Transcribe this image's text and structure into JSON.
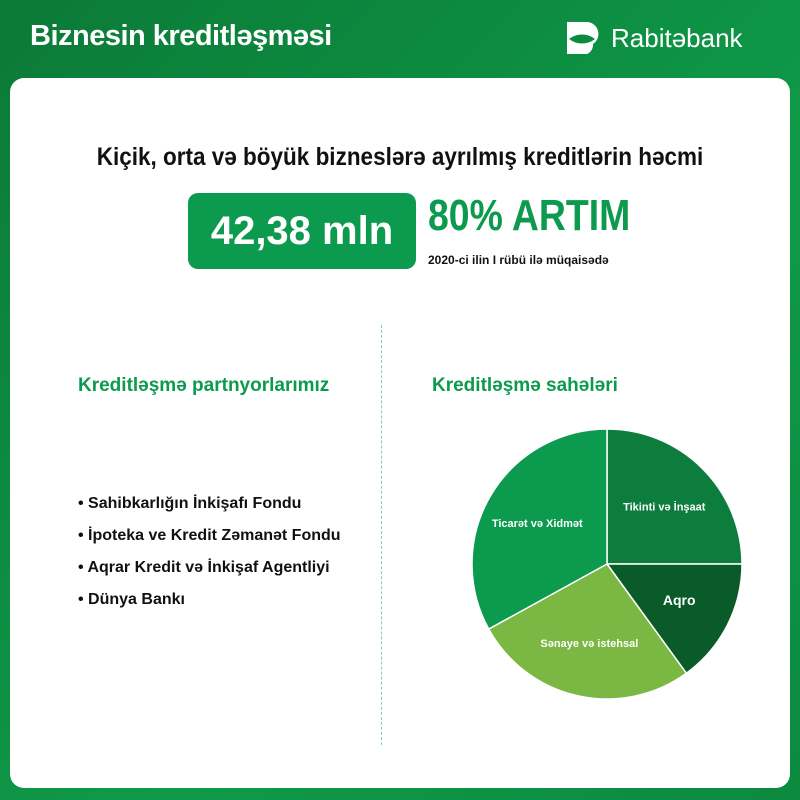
{
  "header": {
    "title": "Biznesin kreditləşməsi",
    "brand": "Rabitəbank"
  },
  "headline": "Kiçik, orta və böyük bizneslərə ayrılmış kreditlərin həcmi",
  "amount": "42,38 mln",
  "growth": "80% ARTIM",
  "comparison": "2020-ci ilin I rübü ilə müqaisədə",
  "partners": {
    "title": "Kreditləşmə partnyorlarımız",
    "items": [
      "Sahibkarlığın İnkişafı Fondu",
      "İpoteka ve Kredit Zəmanət Fondu",
      "Aqrar Kredit və İnkişaf Agentliyi",
      "Dünya Bankı"
    ]
  },
  "chart_data": {
    "type": "pie",
    "title": "Kreditləşmə sahələri",
    "categories": [
      "Tikinti və İnşaat",
      "Aqro",
      "Sənaye və istehsal",
      "Ticarət və Xidmət"
    ],
    "values": [
      25,
      15,
      27,
      33
    ],
    "colors": [
      "#0d7d3e",
      "#0a5a2a",
      "#7ab843",
      "#0c9a4e"
    ],
    "start": "12 o'clock, clockwise"
  }
}
